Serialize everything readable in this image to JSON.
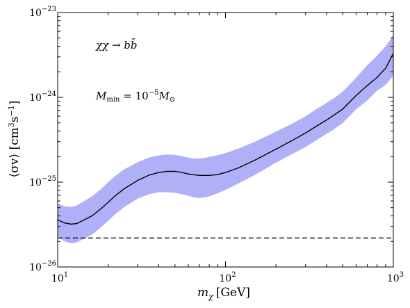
{
  "chart_data": {
    "type": "line",
    "xlabel": {
      "main": "m",
      "sub": "χ",
      "unit": "[GeV]"
    },
    "ylabel": {
      "pre": "⟨σv⟩ [cm",
      "sup1": "3",
      "mid": "s",
      "sup2": "−1",
      "post": "]"
    },
    "xscale": "log",
    "yscale": "log",
    "xlim": [
      10,
      1000
    ],
    "ylim": [
      1e-26,
      1e-23
    ],
    "x_ticks": [
      {
        "value": 10,
        "base": "10",
        "exp": "1"
      },
      {
        "value": 100,
        "base": "10",
        "exp": "2"
      },
      {
        "value": 1000,
        "base": "10",
        "exp": "3"
      }
    ],
    "y_ticks": [
      {
        "value": 1e-26,
        "base": "10",
        "exp": "−26"
      },
      {
        "value": 1e-25,
        "base": "10",
        "exp": "−25"
      },
      {
        "value": 1e-24,
        "base": "10",
        "exp": "−24"
      },
      {
        "value": 1e-23,
        "base": "10",
        "exp": "−23"
      }
    ],
    "annotations": [
      {
        "id": "channel",
        "text": "χχ → bb̄"
      },
      {
        "id": "mmin",
        "pre": "M",
        "sub": "min",
        "mid": " = 10",
        "sup": "−5",
        "post": "M",
        "sub2": "⊙"
      }
    ],
    "series": [
      {
        "style": "solid",
        "color": "#000000",
        "x": [
          10,
          11,
          12,
          13,
          14,
          16,
          18,
          20,
          22,
          25,
          30,
          35,
          40,
          45,
          50,
          55,
          60,
          65,
          70,
          75,
          80,
          90,
          100,
          120,
          150,
          200,
          250,
          300,
          350,
          400,
          450,
          500,
          600,
          700,
          800,
          900,
          1000
        ],
        "y": [
          3.6e-26,
          3.3e-26,
          3.2e-26,
          3.25e-26,
          3.5e-26,
          4e-26,
          4.8e-26,
          5.8e-26,
          6.9e-26,
          8.4e-26,
          1.05e-25,
          1.21e-25,
          1.3e-25,
          1.34e-25,
          1.34e-25,
          1.3e-25,
          1.25e-25,
          1.22e-25,
          1.2e-25,
          1.2e-25,
          1.2e-25,
          1.23e-25,
          1.3e-25,
          1.48e-25,
          1.82e-25,
          2.45e-25,
          3.1e-25,
          3.8e-25,
          4.6e-25,
          5.4e-25,
          6.3e-25,
          7.3e-25,
          1.05e-24,
          1.38e-24,
          1.72e-24,
          2.2e-24,
          3.3e-24
        ]
      },
      {
        "style": "dashed",
        "color": "#000000",
        "x": [
          10,
          1000
        ],
        "y": [
          2.2e-26,
          2.2e-26
        ]
      }
    ],
    "band": {
      "color": "#b0b0f8",
      "x": [
        10,
        11,
        12,
        13,
        14,
        16,
        18,
        20,
        22,
        25,
        30,
        35,
        40,
        45,
        50,
        55,
        60,
        65,
        70,
        75,
        80,
        90,
        100,
        120,
        150,
        200,
        250,
        300,
        350,
        400,
        450,
        500,
        600,
        700,
        800,
        900,
        1000
      ],
      "lower": [
        2.3e-26,
        2e-26,
        1.9e-26,
        1.95e-26,
        2.1e-26,
        2.4e-26,
        2.9e-26,
        3.5e-26,
        4.2e-26,
        5.1e-26,
        6.4e-26,
        7.2e-26,
        7.6e-26,
        7.6e-26,
        7.5e-26,
        7.2e-26,
        6.9e-26,
        6.6e-26,
        6.5e-26,
        6.6e-26,
        6.8e-26,
        7.4e-26,
        8.1e-26,
        9.7e-26,
        1.22e-25,
        1.7e-25,
        2.15e-25,
        2.6e-25,
        3.15e-25,
        3.7e-25,
        4.3e-25,
        5e-25,
        7.2e-25,
        9.2e-25,
        1.2e-24,
        1.4e-24,
        1.8e-24
      ],
      "upper": [
        5.6e-26,
        5.2e-26,
        5.1e-26,
        5.3e-26,
        5.8e-26,
        6.8e-26,
        8.2e-26,
        1e-25,
        1.18e-25,
        1.42e-25,
        1.72e-25,
        1.95e-25,
        2.07e-25,
        2.12e-25,
        2.1e-25,
        2.03e-25,
        1.95e-25,
        1.9e-25,
        1.9e-25,
        1.93e-25,
        1.98e-25,
        2.08e-25,
        2.2e-25,
        2.5e-25,
        3e-25,
        3.95e-25,
        4.9e-25,
        6e-25,
        7.3e-25,
        8.6e-25,
        1e-24,
        1.17e-24,
        1.7e-24,
        2.4e-24,
        3.1e-24,
        4e-24,
        5.4e-24
      ]
    }
  }
}
